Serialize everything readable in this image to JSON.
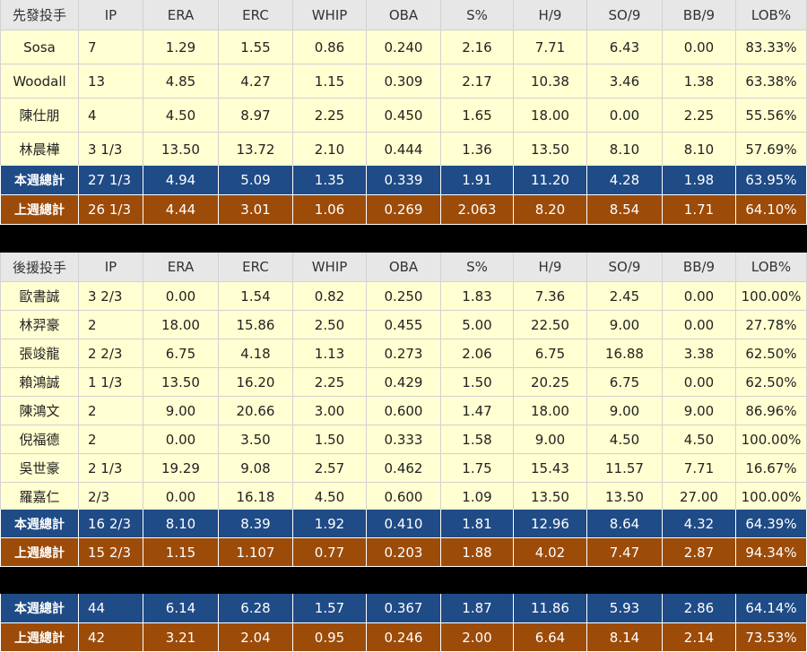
{
  "columns": [
    "IP",
    "ERA",
    "ERC",
    "WHIP",
    "OBA",
    "S%",
    "H/9",
    "SO/9",
    "BB/9",
    "LOB%"
  ],
  "starters": {
    "header_label": "先發投手",
    "rows": [
      {
        "name": "Sosa",
        "values": [
          "7",
          "1.29",
          "1.55",
          "0.86",
          "0.240",
          "2.16",
          "7.71",
          "6.43",
          "0.00",
          "83.33%"
        ]
      },
      {
        "name": "Woodall",
        "values": [
          "13",
          "4.85",
          "4.27",
          "1.15",
          "0.309",
          "2.17",
          "10.38",
          "3.46",
          "1.38",
          "63.38%"
        ]
      },
      {
        "name": "陳仕朋",
        "values": [
          "4",
          "4.50",
          "8.97",
          "2.25",
          "0.450",
          "1.65",
          "18.00",
          "0.00",
          "2.25",
          "55.56%"
        ]
      },
      {
        "name": "林晨樺",
        "values": [
          "3 1/3",
          "13.50",
          "13.72",
          "2.10",
          "0.444",
          "1.36",
          "13.50",
          "8.10",
          "8.10",
          "57.69%"
        ]
      }
    ],
    "this_week": {
      "label": "本週總計",
      "values": [
        "27 1/3",
        "4.94",
        "5.09",
        "1.35",
        "0.339",
        "1.91",
        "11.20",
        "4.28",
        "1.98",
        "63.95%"
      ]
    },
    "last_week": {
      "label": "上週總計",
      "values": [
        "26 1/3",
        "4.44",
        "3.01",
        "1.06",
        "0.269",
        "2.063",
        "8.20",
        "8.54",
        "1.71",
        "64.10%"
      ]
    }
  },
  "relievers": {
    "header_label": "後援投手",
    "rows": [
      {
        "name": "歐書誠",
        "values": [
          "3 2/3",
          "0.00",
          "1.54",
          "0.82",
          "0.250",
          "1.83",
          "7.36",
          "2.45",
          "0.00",
          "100.00%"
        ]
      },
      {
        "name": "林羿豪",
        "values": [
          "2",
          "18.00",
          "15.86",
          "2.50",
          "0.455",
          "5.00",
          "22.50",
          "9.00",
          "0.00",
          "27.78%"
        ]
      },
      {
        "name": "張竣龍",
        "values": [
          "2 2/3",
          "6.75",
          "4.18",
          "1.13",
          "0.273",
          "2.06",
          "6.75",
          "16.88",
          "3.38",
          "62.50%"
        ]
      },
      {
        "name": "賴鴻誠",
        "values": [
          "1 1/3",
          "13.50",
          "16.20",
          "2.25",
          "0.429",
          "1.50",
          "20.25",
          "6.75",
          "0.00",
          "62.50%"
        ]
      },
      {
        "name": "陳鴻文",
        "values": [
          "2",
          "9.00",
          "20.66",
          "3.00",
          "0.600",
          "1.47",
          "18.00",
          "9.00",
          "9.00",
          "86.96%"
        ]
      },
      {
        "name": "倪福德",
        "values": [
          "2",
          "0.00",
          "3.50",
          "1.50",
          "0.333",
          "1.58",
          "9.00",
          "4.50",
          "4.50",
          "100.00%"
        ]
      },
      {
        "name": "吳世豪",
        "values": [
          "2 1/3",
          "19.29",
          "9.08",
          "2.57",
          "0.462",
          "1.75",
          "15.43",
          "11.57",
          "7.71",
          "16.67%"
        ]
      },
      {
        "name": "羅嘉仁",
        "values": [
          "2/3",
          "0.00",
          "16.18",
          "4.50",
          "0.600",
          "1.09",
          "13.50",
          "13.50",
          "27.00",
          "100.00%"
        ]
      }
    ],
    "this_week": {
      "label": "本週總計",
      "values": [
        "16 2/3",
        "8.10",
        "8.39",
        "1.92",
        "0.410",
        "1.81",
        "12.96",
        "8.64",
        "4.32",
        "64.39%"
      ]
    },
    "last_week": {
      "label": "上週總計",
      "values": [
        "15 2/3",
        "1.15",
        "1.107",
        "0.77",
        "0.203",
        "1.88",
        "4.02",
        "7.47",
        "2.87",
        "94.34%"
      ]
    }
  },
  "totals": {
    "this_week": {
      "label": "本週總計",
      "values": [
        "44",
        "6.14",
        "6.28",
        "1.57",
        "0.367",
        "1.87",
        "11.86",
        "5.93",
        "2.86",
        "64.14%"
      ]
    },
    "last_week": {
      "label": "上週總計",
      "values": [
        "42",
        "3.21",
        "2.04",
        "0.95",
        "0.246",
        "2.00",
        "6.64",
        "8.14",
        "2.14",
        "73.53%"
      ]
    }
  },
  "colors": {
    "header_bg": "#e7e7e7",
    "row_bg": "#ffffd1",
    "this_week_bg": "#1f4b86",
    "last_week_bg": "#9c4b09",
    "separator": "#000000"
  }
}
